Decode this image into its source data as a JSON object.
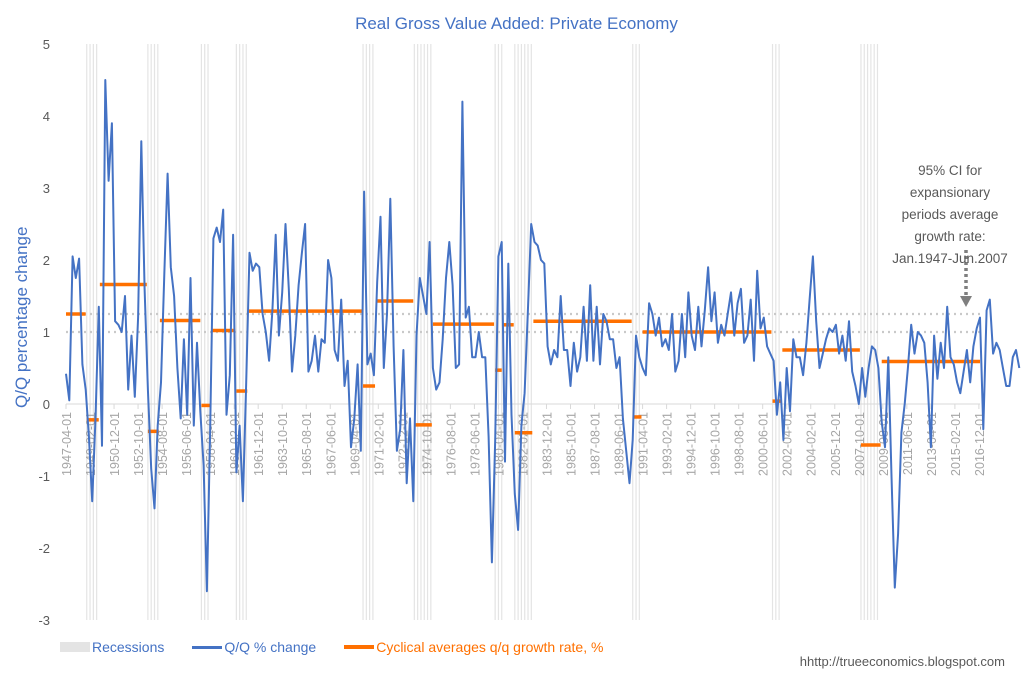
{
  "chart_data": {
    "type": "line",
    "title": "Real Gross Value Added: Private Economy",
    "ylabel": "Q/Q percentage change",
    "xlabel": "",
    "ylim": [
      -3,
      5
    ],
    "yticks": [
      5,
      4,
      3,
      2,
      1,
      0,
      -1,
      -2,
      -3
    ],
    "x_start": "1947-04-01",
    "x_end": "2017-01-01",
    "frequency": "quarterly",
    "xtick_labels": [
      "1947-04-01",
      "1949-02-01",
      "1950-12-01",
      "1952-10-01",
      "1954-08-01",
      "1956-06-01",
      "1958-04-01",
      "1960-02-01",
      "1961-12-01",
      "1963-10-01",
      "1965-08-01",
      "1967-06-01",
      "1969-04-01",
      "1971-02-01",
      "1972-12-01",
      "1974-10-01",
      "1976-08-01",
      "1978-06-01",
      "1980-04-01",
      "1982-02-01",
      "1983-12-01",
      "1985-10-01",
      "1987-08-01",
      "1989-06-01",
      "1991-04-01",
      "1993-02-01",
      "1994-12-01",
      "1996-10-01",
      "1998-08-01",
      "2000-06-01",
      "2002-04-01",
      "2004-02-01",
      "2005-12-01",
      "2007-10-01",
      "2009-08-01",
      "2011-06-01",
      "2013-04-01",
      "2015-02-01",
      "2016-12-01"
    ],
    "legend": {
      "placement": "bottom-left",
      "entries": [
        "Recessions",
        "Q/Q % change",
        "Cyclical averages q/q growth rate, %"
      ]
    },
    "colors": {
      "line": "#4472c4",
      "averages": "#ff7000",
      "recession": "#e4e4e4",
      "ci": "#c9c9c9",
      "axis_text": "#595959",
      "title": "#4472c4"
    },
    "ci_band": {
      "label": "95% CI for expansionary periods average growth rate: Jan.1947-Jun.2007",
      "lower": 1.0,
      "upper": 1.25
    },
    "annotation_lines": [
      "95% CI for",
      "expansionary",
      "periods average",
      "growth rate:",
      "Jan.1947-Jun.2007"
    ],
    "recessions": [
      [
        "1948-11-01",
        "1949-10-01"
      ],
      [
        "1953-07-01",
        "1954-05-01"
      ],
      [
        "1957-08-01",
        "1958-04-01"
      ],
      [
        "1960-04-01",
        "1961-02-01"
      ],
      [
        "1969-12-01",
        "1970-11-01"
      ],
      [
        "1973-11-01",
        "1975-03-01"
      ],
      [
        "1980-01-01",
        "1980-07-01"
      ],
      [
        "1981-07-01",
        "1982-11-01"
      ],
      [
        "1990-07-01",
        "1991-03-01"
      ],
      [
        "2001-03-01",
        "2001-11-01"
      ],
      [
        "2007-12-01",
        "2009-06-01"
      ]
    ],
    "cyclical_averages": [
      {
        "start": "1947-04-01",
        "end": "1948-10-01",
        "value": 1.25
      },
      {
        "start": "1948-11-01",
        "end": "1949-10-01",
        "value": -0.22
      },
      {
        "start": "1949-11-01",
        "end": "1953-06-01",
        "value": 1.66
      },
      {
        "start": "1953-07-01",
        "end": "1954-05-01",
        "value": -0.38
      },
      {
        "start": "1954-06-01",
        "end": "1957-07-01",
        "value": 1.16
      },
      {
        "start": "1957-08-01",
        "end": "1958-04-01",
        "value": -0.02
      },
      {
        "start": "1958-05-01",
        "end": "1960-03-01",
        "value": 1.02
      },
      {
        "start": "1960-04-01",
        "end": "1961-02-01",
        "value": 0.18
      },
      {
        "start": "1961-03-01",
        "end": "1969-11-01",
        "value": 1.29
      },
      {
        "start": "1969-12-01",
        "end": "1970-11-01",
        "value": 0.25
      },
      {
        "start": "1970-12-01",
        "end": "1973-10-01",
        "value": 1.43
      },
      {
        "start": "1973-11-01",
        "end": "1975-03-01",
        "value": -0.29
      },
      {
        "start": "1975-04-01",
        "end": "1979-12-01",
        "value": 1.11
      },
      {
        "start": "1980-01-01",
        "end": "1980-07-01",
        "value": 0.47
      },
      {
        "start": "1980-08-01",
        "end": "1981-06-01",
        "value": 1.1
      },
      {
        "start": "1981-07-01",
        "end": "1982-11-01",
        "value": -0.4
      },
      {
        "start": "1982-12-01",
        "end": "1990-06-01",
        "value": 1.15
      },
      {
        "start": "1990-07-01",
        "end": "1991-03-01",
        "value": -0.18
      },
      {
        "start": "1991-04-01",
        "end": "2001-02-01",
        "value": 1.0
      },
      {
        "start": "2001-03-01",
        "end": "2001-11-01",
        "value": 0.04
      },
      {
        "start": "2001-12-01",
        "end": "2007-11-01",
        "value": 0.75
      },
      {
        "start": "2007-12-01",
        "end": "2009-06-01",
        "value": -0.57
      },
      {
        "start": "2009-07-01",
        "end": "2017-01-01",
        "value": 0.59
      }
    ],
    "series": [
      {
        "name": "Q/Q % change",
        "values": [
          0.42,
          0.05,
          2.05,
          1.75,
          2.02,
          0.55,
          0.2,
          -0.45,
          -1.35,
          -0.2,
          1.35,
          -0.58,
          4.5,
          3.1,
          3.9,
          1.15,
          1.1,
          1.0,
          1.5,
          0.2,
          0.95,
          0.1,
          1.2,
          3.65,
          1.6,
          0.2,
          -0.9,
          -1.45,
          -0.3,
          0.3,
          1.8,
          3.2,
          1.9,
          1.5,
          0.5,
          -0.2,
          0.9,
          -0.15,
          1.75,
          -0.3,
          0.85,
          -0.1,
          -0.85,
          -2.6,
          -0.4,
          2.3,
          2.45,
          2.25,
          2.7,
          -0.15,
          0.4,
          2.35,
          -0.95,
          -0.3,
          -1.35,
          0.3,
          2.1,
          1.85,
          1.95,
          1.9,
          1.25,
          1.0,
          0.6,
          1.3,
          2.35,
          0.95,
          1.55,
          2.5,
          1.6,
          0.45,
          0.95,
          1.65,
          2.1,
          2.5,
          0.45,
          0.6,
          0.95,
          0.45,
          0.9,
          0.85,
          2.0,
          1.75,
          0.75,
          0.6,
          1.45,
          0.25,
          0.6,
          -0.6,
          -0.2,
          0.55,
          -0.65,
          2.95,
          0.55,
          0.7,
          0.4,
          1.7,
          2.6,
          0.5,
          1.25,
          2.85,
          0.8,
          -0.65,
          -0.35,
          0.75,
          -1.1,
          -0.2,
          -1.35,
          0.95,
          1.75,
          1.5,
          1.25,
          2.25,
          0.5,
          0.2,
          0.3,
          0.9,
          1.75,
          2.25,
          1.65,
          0.5,
          0.55,
          4.2,
          1.2,
          1.35,
          0.65,
          0.65,
          1.0,
          0.65,
          0.65,
          -0.45,
          -2.2,
          -0.5,
          2.05,
          2.25,
          -0.8,
          1.95,
          -0.15,
          -1.25,
          -1.75,
          -0.3,
          0.15,
          1.3,
          2.5,
          2.25,
          2.2,
          2.0,
          1.95,
          0.8,
          0.55,
          0.75,
          0.65,
          1.5,
          0.75,
          0.75,
          0.25,
          0.85,
          0.45,
          0.65,
          1.35,
          0.6,
          1.65,
          0.6,
          1.35,
          0.55,
          1.25,
          1.15,
          0.9,
          0.9,
          0.5,
          0.65,
          -0.2,
          -0.65,
          -1.1,
          -0.5,
          0.95,
          0.65,
          0.5,
          0.4,
          1.4,
          1.25,
          0.95,
          1.2,
          0.8,
          0.9,
          0.75,
          1.25,
          0.45,
          0.6,
          1.25,
          0.65,
          1.55,
          0.95,
          0.75,
          1.35,
          0.8,
          1.3,
          1.9,
          1.15,
          1.55,
          0.85,
          1.1,
          0.95,
          1.25,
          1.55,
          0.95,
          1.4,
          1.6,
          0.85,
          0.95,
          1.45,
          0.6,
          1.85,
          1.05,
          1.2,
          0.8,
          0.7,
          0.6,
          -0.15,
          0.3,
          -0.5,
          0.5,
          -0.1,
          0.9,
          0.65,
          0.65,
          0.4,
          0.85,
          1.45,
          2.05,
          1.15,
          0.5,
          0.7,
          0.9,
          1.05,
          1.0,
          1.1,
          0.7,
          0.95,
          0.6,
          1.15,
          0.45,
          0.25,
          0.0,
          0.5,
          0.1,
          0.5,
          0.8,
          0.75,
          0.5,
          -0.25,
          -0.6,
          0.65,
          -1.0,
          -2.55,
          -1.8,
          -0.4,
          0.0,
          0.5,
          1.1,
          0.7,
          1.0,
          0.95,
          0.85,
          0.3,
          -0.6,
          0.95,
          0.35,
          0.85,
          0.5,
          1.35,
          0.65,
          0.55,
          0.3,
          0.15,
          0.45,
          0.75,
          0.3,
          0.8,
          1.05,
          1.2,
          -0.35,
          1.3,
          1.45,
          0.7,
          0.85,
          0.75,
          0.5,
          0.25,
          0.25,
          0.65,
          0.75,
          0.5
        ]
      }
    ]
  },
  "footer": {
    "credit": "hhttp://trueeconomics.blogspot.com"
  }
}
